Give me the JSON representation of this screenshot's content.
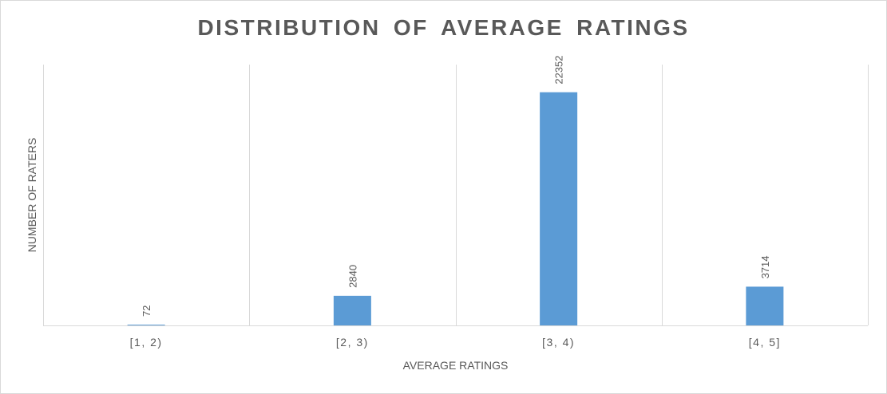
{
  "chart_data": {
    "type": "bar",
    "title": "DISTRIBUTION OF AVERAGE RATINGS",
    "xlabel": "AVERAGE RATINGS",
    "ylabel": "NUMBER OF RATERS",
    "categories": [
      "[1, 2)",
      "[2, 3)",
      "[3, 4)",
      "[4, 5]"
    ],
    "values": [
      72,
      2840,
      22352,
      3714
    ],
    "data_labels": [
      "72",
      "2840",
      "22352",
      "3714"
    ],
    "ylim": [
      0,
      25000
    ],
    "grid": "vertical category separators",
    "legend": "none",
    "bar_color": "#5b9bd5",
    "gridline_color": "#d9d9d9",
    "text_color": "#595959"
  }
}
